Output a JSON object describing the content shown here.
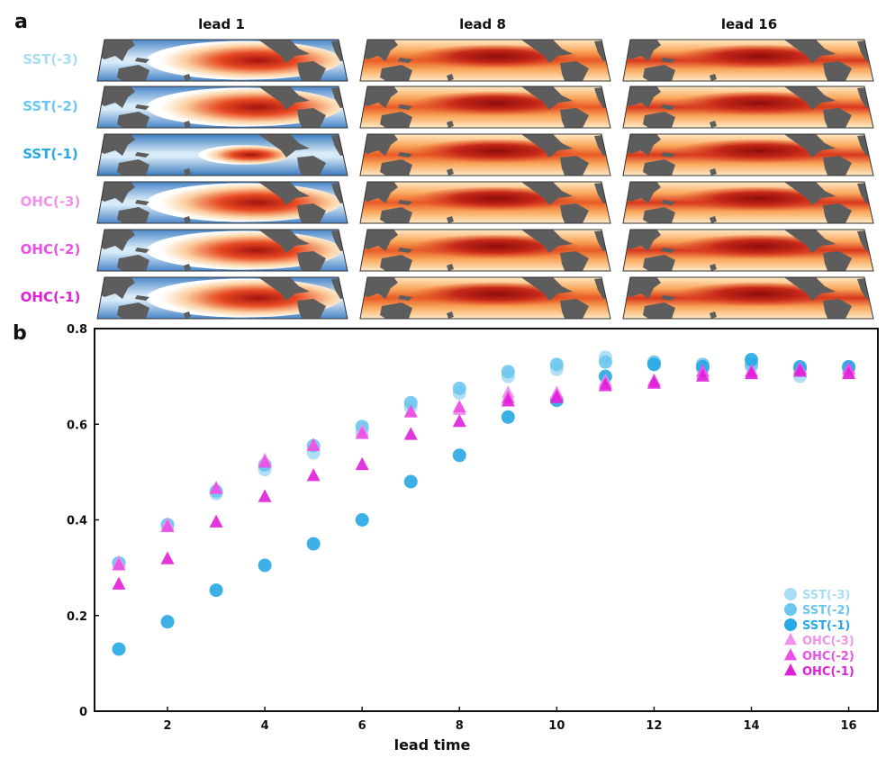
{
  "panel_a": {
    "letter": "a",
    "columns": [
      "lead 1",
      "lead 8",
      "lead 16"
    ],
    "rows": [
      {
        "label": "SST(-3)",
        "color": "#a9dcf5"
      },
      {
        "label": "SST(-2)",
        "color": "#6cc6f0"
      },
      {
        "label": "SST(-1)",
        "color": "#27a9e6"
      },
      {
        "label": "OHC(-3)",
        "color": "#f291ec"
      },
      {
        "label": "OHC(-2)",
        "color": "#eb4fe6"
      },
      {
        "label": "OHC(-1)",
        "color": "#e01fd9"
      }
    ]
  },
  "chart_data": {
    "type": "scatter",
    "panel_letter": "b",
    "xlabel": "lead time",
    "ylabel": "",
    "xlim": [
      0.5,
      16.6
    ],
    "ylim": [
      0,
      0.8
    ],
    "xticks": [
      2,
      4,
      6,
      8,
      10,
      12,
      14,
      16
    ],
    "yticks": [
      0,
      0.2,
      0.4,
      0.6,
      0.8
    ],
    "x": [
      1,
      2,
      3,
      4,
      5,
      6,
      7,
      8,
      9,
      10,
      11,
      12,
      13,
      14,
      15,
      16
    ],
    "legend_position": "bottom-right",
    "series": [
      {
        "name": "SST(-3)",
        "marker": "circle",
        "color": "#a9dcf5",
        "values": [
          0.31,
          0.39,
          0.455,
          0.505,
          0.54,
          0.585,
          0.635,
          0.665,
          0.7,
          0.715,
          0.74,
          0.725,
          0.715,
          0.72,
          0.7,
          0.715
        ]
      },
      {
        "name": "SST(-2)",
        "marker": "circle",
        "color": "#6cc6f0",
        "values": [
          0.31,
          0.39,
          0.46,
          0.515,
          0.555,
          0.595,
          0.645,
          0.675,
          0.71,
          0.725,
          0.73,
          0.73,
          0.725,
          0.725,
          0.715,
          0.72
        ]
      },
      {
        "name": "SST(-1)",
        "marker": "circle",
        "color": "#27a9e6",
        "values": [
          0.13,
          0.187,
          0.253,
          0.305,
          0.35,
          0.4,
          0.48,
          0.535,
          0.615,
          0.65,
          0.7,
          0.725,
          0.72,
          0.735,
          0.72,
          0.72
        ]
      },
      {
        "name": "OHC(-3)",
        "marker": "triangle",
        "color": "#f291ec",
        "values": [
          0.31,
          0.39,
          0.465,
          0.525,
          0.555,
          0.585,
          0.625,
          0.63,
          0.665,
          0.665,
          0.69,
          0.69,
          0.705,
          0.71,
          0.715,
          0.71
        ]
      },
      {
        "name": "OHC(-2)",
        "marker": "triangle",
        "color": "#eb4fe6",
        "values": [
          0.305,
          0.385,
          0.465,
          0.52,
          0.555,
          0.58,
          0.625,
          0.635,
          0.655,
          0.66,
          0.685,
          0.69,
          0.71,
          0.71,
          0.715,
          0.715
        ]
      },
      {
        "name": "OHC(-1)",
        "marker": "triangle",
        "color": "#e01fd9",
        "values": [
          0.265,
          0.318,
          0.395,
          0.448,
          0.492,
          0.515,
          0.578,
          0.605,
          0.648,
          0.655,
          0.68,
          0.685,
          0.7,
          0.705,
          0.71,
          0.705
        ]
      }
    ]
  }
}
